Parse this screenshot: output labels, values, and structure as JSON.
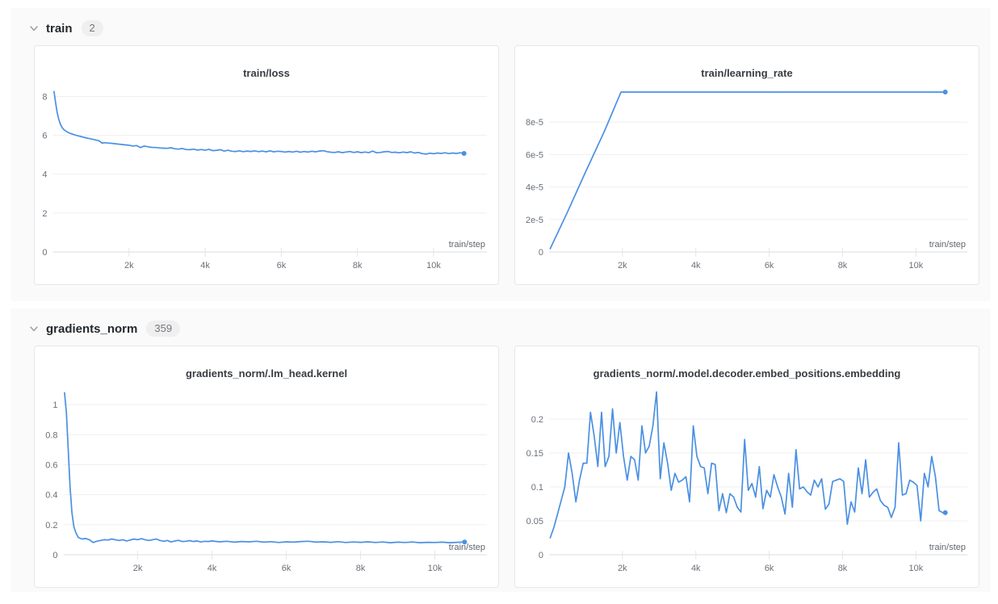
{
  "colors": {
    "accent": "#4a90e2",
    "grid": "#efefef",
    "axis": "#d9dce0",
    "tick_mark": "#e4e6e9",
    "section_bg": "#fafafa"
  },
  "sections": [
    {
      "label": "train",
      "count": "2"
    },
    {
      "label": "gradients_norm",
      "count": "359"
    }
  ],
  "chart_data": [
    {
      "type": "line",
      "title": "train/loss",
      "xlabel": "train/step",
      "xlim": [
        0,
        11400
      ],
      "ylim": [
        0,
        8.6
      ],
      "x_ticks": {
        "values": [
          2000,
          4000,
          6000,
          8000,
          10000
        ],
        "labels": [
          "2k",
          "4k",
          "6k",
          "8k",
          "10k"
        ]
      },
      "y_ticks": {
        "values": [
          0,
          2,
          4,
          6,
          8
        ],
        "labels": [
          "0",
          "2",
          "4",
          "6",
          "8"
        ]
      },
      "line_color": "#4a90e2",
      "points": [
        [
          30,
          8.25
        ],
        [
          70,
          7.7
        ],
        [
          110,
          7.2
        ],
        [
          150,
          6.85
        ],
        [
          190,
          6.6
        ],
        [
          230,
          6.45
        ],
        [
          270,
          6.33
        ],
        [
          310,
          6.26
        ],
        [
          370,
          6.18
        ],
        [
          430,
          6.12
        ],
        [
          500,
          6.07
        ],
        [
          570,
          6.03
        ],
        [
          650,
          5.98
        ],
        [
          730,
          5.94
        ],
        [
          810,
          5.9
        ],
        [
          890,
          5.86
        ],
        [
          970,
          5.83
        ],
        [
          1050,
          5.79
        ],
        [
          1130,
          5.76
        ],
        [
          1210,
          5.72
        ],
        [
          1290,
          5.6
        ],
        [
          1370,
          5.62
        ],
        [
          1450,
          5.6
        ],
        [
          1530,
          5.59
        ],
        [
          1610,
          5.57
        ],
        [
          1700,
          5.55
        ],
        [
          1800,
          5.53
        ],
        [
          1900,
          5.51
        ],
        [
          2000,
          5.49
        ],
        [
          2100,
          5.45
        ],
        [
          2200,
          5.47
        ],
        [
          2300,
          5.37
        ],
        [
          2400,
          5.45
        ],
        [
          2500,
          5.41
        ],
        [
          2600,
          5.38
        ],
        [
          2700,
          5.37
        ],
        [
          2800,
          5.35
        ],
        [
          2900,
          5.34
        ],
        [
          3000,
          5.33
        ],
        [
          3100,
          5.36
        ],
        [
          3200,
          5.31
        ],
        [
          3300,
          5.29
        ],
        [
          3400,
          5.32
        ],
        [
          3500,
          5.27
        ],
        [
          3600,
          5.26
        ],
        [
          3700,
          5.29
        ],
        [
          3800,
          5.24
        ],
        [
          3900,
          5.27
        ],
        [
          4000,
          5.23
        ],
        [
          4100,
          5.28
        ],
        [
          4200,
          5.21
        ],
        [
          4300,
          5.23
        ],
        [
          4400,
          5.26
        ],
        [
          4500,
          5.19
        ],
        [
          4600,
          5.23
        ],
        [
          4700,
          5.18
        ],
        [
          4800,
          5.17
        ],
        [
          4900,
          5.2
        ],
        [
          5000,
          5.16
        ],
        [
          5100,
          5.19
        ],
        [
          5200,
          5.17
        ],
        [
          5300,
          5.2
        ],
        [
          5400,
          5.16
        ],
        [
          5500,
          5.19
        ],
        [
          5600,
          5.15
        ],
        [
          5700,
          5.2
        ],
        [
          5800,
          5.15
        ],
        [
          5900,
          5.18
        ],
        [
          6000,
          5.17
        ],
        [
          6100,
          5.14
        ],
        [
          6200,
          5.17
        ],
        [
          6300,
          5.14
        ],
        [
          6400,
          5.18
        ],
        [
          6500,
          5.13
        ],
        [
          6600,
          5.17
        ],
        [
          6700,
          5.14
        ],
        [
          6800,
          5.18
        ],
        [
          6900,
          5.15
        ],
        [
          7000,
          5.19
        ],
        [
          7100,
          5.21
        ],
        [
          7200,
          5.16
        ],
        [
          7300,
          5.13
        ],
        [
          7400,
          5.12
        ],
        [
          7500,
          5.15
        ],
        [
          7600,
          5.11
        ],
        [
          7700,
          5.14
        ],
        [
          7800,
          5.17
        ],
        [
          7900,
          5.12
        ],
        [
          8000,
          5.15
        ],
        [
          8100,
          5.11
        ],
        [
          8200,
          5.14
        ],
        [
          8300,
          5.11
        ],
        [
          8400,
          5.19
        ],
        [
          8500,
          5.1
        ],
        [
          8600,
          5.12
        ],
        [
          8700,
          5.15
        ],
        [
          8800,
          5.17
        ],
        [
          8900,
          5.12
        ],
        [
          9000,
          5.13
        ],
        [
          9100,
          5.1
        ],
        [
          9200,
          5.14
        ],
        [
          9300,
          5.11
        ],
        [
          9400,
          5.15
        ],
        [
          9500,
          5.09
        ],
        [
          9600,
          5.12
        ],
        [
          9700,
          5.06
        ],
        [
          9800,
          5.03
        ],
        [
          9900,
          5.08
        ],
        [
          10000,
          5.05
        ],
        [
          10100,
          5.09
        ],
        [
          10200,
          5.07
        ],
        [
          10300,
          5.1
        ],
        [
          10400,
          5.06
        ],
        [
          10500,
          5.09
        ],
        [
          10600,
          5.07
        ],
        [
          10700,
          5.1
        ],
        [
          10800,
          5.07
        ]
      ]
    },
    {
      "type": "line",
      "title": "train/learning_rate",
      "xlabel": "train/step",
      "xlim": [
        0,
        11400
      ],
      "ylim": [
        0,
        0.000103
      ],
      "x_ticks": {
        "values": [
          2000,
          4000,
          6000,
          8000,
          10000
        ],
        "labels": [
          "2k",
          "4k",
          "6k",
          "8k",
          "10k"
        ]
      },
      "y_ticks": {
        "values": [
          0,
          2e-05,
          4e-05,
          6e-05,
          8e-05
        ],
        "labels": [
          "0",
          "2e-5",
          "4e-5",
          "6e-5",
          "8e-5"
        ]
      },
      "line_color": "#4a90e2",
      "points": [
        [
          30,
          2e-06
        ],
        [
          500,
          2.45e-05
        ],
        [
          1000,
          4.95e-05
        ],
        [
          1500,
          7.4e-05
        ],
        [
          1960,
          9.85e-05
        ],
        [
          3000,
          9.85e-05
        ],
        [
          5000,
          9.85e-05
        ],
        [
          7000,
          9.85e-05
        ],
        [
          9000,
          9.85e-05
        ],
        [
          10800,
          9.85e-05
        ]
      ]
    },
    {
      "type": "line",
      "title": "gradients_norm/.lm_head.kernel",
      "xlabel": "train/step",
      "xlim": [
        0,
        11400
      ],
      "ylim": [
        0,
        1.13
      ],
      "x_ticks": {
        "values": [
          2000,
          4000,
          6000,
          8000,
          10000
        ],
        "labels": [
          "2k",
          "4k",
          "6k",
          "8k",
          "10k"
        ]
      },
      "y_ticks": {
        "values": [
          0,
          0.2,
          0.4,
          0.6,
          0.8,
          1
        ],
        "labels": [
          "0",
          "0.2",
          "0.4",
          "0.6",
          "0.8",
          "1"
        ]
      },
      "line_color": "#4a90e2",
      "points": [
        [
          30,
          1.08
        ],
        [
          80,
          0.95
        ],
        [
          130,
          0.7
        ],
        [
          180,
          0.45
        ],
        [
          230,
          0.28
        ],
        [
          280,
          0.19
        ],
        [
          330,
          0.15
        ],
        [
          400,
          0.115
        ],
        [
          500,
          0.105
        ],
        [
          600,
          0.108
        ],
        [
          700,
          0.1
        ],
        [
          800,
          0.082
        ],
        [
          900,
          0.09
        ],
        [
          1000,
          0.095
        ],
        [
          1100,
          0.1
        ],
        [
          1200,
          0.098
        ],
        [
          1300,
          0.105
        ],
        [
          1400,
          0.1
        ],
        [
          1500,
          0.095
        ],
        [
          1600,
          0.1
        ],
        [
          1700,
          0.092
        ],
        [
          1800,
          0.098
        ],
        [
          1900,
          0.105
        ],
        [
          2000,
          0.1
        ],
        [
          2100,
          0.107
        ],
        [
          2200,
          0.1
        ],
        [
          2300,
          0.095
        ],
        [
          2400,
          0.1
        ],
        [
          2500,
          0.105
        ],
        [
          2600,
          0.095
        ],
        [
          2700,
          0.09
        ],
        [
          2800,
          0.095
        ],
        [
          2900,
          0.085
        ],
        [
          3000,
          0.092
        ],
        [
          3100,
          0.096
        ],
        [
          3200,
          0.088
        ],
        [
          3300,
          0.09
        ],
        [
          3400,
          0.094
        ],
        [
          3500,
          0.088
        ],
        [
          3600,
          0.092
        ],
        [
          3700,
          0.085
        ],
        [
          3800,
          0.09
        ],
        [
          3900,
          0.088
        ],
        [
          4000,
          0.092
        ],
        [
          4200,
          0.086
        ],
        [
          4400,
          0.09
        ],
        [
          4600,
          0.084
        ],
        [
          4800,
          0.088
        ],
        [
          5000,
          0.086
        ],
        [
          5200,
          0.09
        ],
        [
          5400,
          0.084
        ],
        [
          5600,
          0.087
        ],
        [
          5800,
          0.082
        ],
        [
          6000,
          0.086
        ],
        [
          6200,
          0.084
        ],
        [
          6400,
          0.088
        ],
        [
          6600,
          0.09
        ],
        [
          6800,
          0.084
        ],
        [
          7000,
          0.086
        ],
        [
          7200,
          0.083
        ],
        [
          7400,
          0.087
        ],
        [
          7600,
          0.082
        ],
        [
          7800,
          0.085
        ],
        [
          8000,
          0.083
        ],
        [
          8200,
          0.086
        ],
        [
          8400,
          0.082
        ],
        [
          8600,
          0.085
        ],
        [
          8800,
          0.08
        ],
        [
          9000,
          0.084
        ],
        [
          9200,
          0.082
        ],
        [
          9400,
          0.085
        ],
        [
          9600,
          0.08
        ],
        [
          9800,
          0.083
        ],
        [
          10000,
          0.082
        ],
        [
          10200,
          0.084
        ],
        [
          10400,
          0.08
        ],
        [
          10600,
          0.083
        ],
        [
          10800,
          0.085
        ]
      ]
    },
    {
      "type": "line",
      "title": "gradients_norm/.model.decoder.embed_positions.embedding",
      "xlabel": "train/step",
      "xlim": [
        0,
        11400
      ],
      "ylim": [
        0,
        0.25
      ],
      "x_ticks": {
        "values": [
          2000,
          4000,
          6000,
          8000,
          10000
        ],
        "labels": [
          "2k",
          "4k",
          "6k",
          "8k",
          "10k"
        ]
      },
      "y_ticks": {
        "values": [
          0,
          0.05,
          0.1,
          0.15,
          0.2
        ],
        "labels": [
          "0",
          "0.05",
          "0.1",
          "0.15",
          "0.2"
        ]
      },
      "line_color": "#4a90e2",
      "points": [
        [
          30,
          0.025
        ],
        [
          130,
          0.04
        ],
        [
          230,
          0.06
        ],
        [
          330,
          0.08
        ],
        [
          430,
          0.1
        ],
        [
          530,
          0.15
        ],
        [
          630,
          0.12
        ],
        [
          730,
          0.078
        ],
        [
          830,
          0.11
        ],
        [
          930,
          0.135
        ],
        [
          1030,
          0.135
        ],
        [
          1130,
          0.21
        ],
        [
          1230,
          0.175
        ],
        [
          1330,
          0.13
        ],
        [
          1430,
          0.21
        ],
        [
          1530,
          0.13
        ],
        [
          1630,
          0.145
        ],
        [
          1730,
          0.215
        ],
        [
          1830,
          0.15
        ],
        [
          1930,
          0.195
        ],
        [
          2030,
          0.145
        ],
        [
          2130,
          0.11
        ],
        [
          2230,
          0.145
        ],
        [
          2330,
          0.14
        ],
        [
          2430,
          0.11
        ],
        [
          2530,
          0.19
        ],
        [
          2630,
          0.15
        ],
        [
          2730,
          0.16
        ],
        [
          2830,
          0.19
        ],
        [
          2930,
          0.24
        ],
        [
          3030,
          0.112
        ],
        [
          3130,
          0.165
        ],
        [
          3230,
          0.135
        ],
        [
          3330,
          0.095
        ],
        [
          3430,
          0.12
        ],
        [
          3530,
          0.107
        ],
        [
          3630,
          0.11
        ],
        [
          3730,
          0.115
        ],
        [
          3830,
          0.078
        ],
        [
          3930,
          0.19
        ],
        [
          4030,
          0.145
        ],
        [
          4130,
          0.13
        ],
        [
          4230,
          0.128
        ],
        [
          4330,
          0.09
        ],
        [
          4430,
          0.135
        ],
        [
          4530,
          0.133
        ],
        [
          4630,
          0.065
        ],
        [
          4730,
          0.09
        ],
        [
          4830,
          0.062
        ],
        [
          4930,
          0.09
        ],
        [
          5030,
          0.085
        ],
        [
          5130,
          0.07
        ],
        [
          5230,
          0.063
        ],
        [
          5330,
          0.17
        ],
        [
          5430,
          0.095
        ],
        [
          5530,
          0.105
        ],
        [
          5630,
          0.085
        ],
        [
          5730,
          0.13
        ],
        [
          5830,
          0.068
        ],
        [
          5930,
          0.095
        ],
        [
          6030,
          0.085
        ],
        [
          6130,
          0.118
        ],
        [
          6230,
          0.1
        ],
        [
          6330,
          0.085
        ],
        [
          6430,
          0.06
        ],
        [
          6530,
          0.12
        ],
        [
          6630,
          0.07
        ],
        [
          6730,
          0.155
        ],
        [
          6830,
          0.097
        ],
        [
          6930,
          0.1
        ],
        [
          7030,
          0.093
        ],
        [
          7130,
          0.088
        ],
        [
          7230,
          0.11
        ],
        [
          7330,
          0.1
        ],
        [
          7430,
          0.112
        ],
        [
          7530,
          0.067
        ],
        [
          7630,
          0.075
        ],
        [
          7730,
          0.108
        ],
        [
          7830,
          0.11
        ],
        [
          7930,
          0.112
        ],
        [
          8030,
          0.108
        ],
        [
          8130,
          0.045
        ],
        [
          8230,
          0.078
        ],
        [
          8330,
          0.063
        ],
        [
          8430,
          0.128
        ],
        [
          8530,
          0.09
        ],
        [
          8630,
          0.14
        ],
        [
          8730,
          0.085
        ],
        [
          8830,
          0.092
        ],
        [
          8930,
          0.097
        ],
        [
          9030,
          0.08
        ],
        [
          9130,
          0.073
        ],
        [
          9230,
          0.07
        ],
        [
          9330,
          0.055
        ],
        [
          9430,
          0.07
        ],
        [
          9530,
          0.165
        ],
        [
          9630,
          0.088
        ],
        [
          9730,
          0.09
        ],
        [
          9830,
          0.11
        ],
        [
          9930,
          0.107
        ],
        [
          10030,
          0.102
        ],
        [
          10130,
          0.05
        ],
        [
          10230,
          0.12
        ],
        [
          10330,
          0.1
        ],
        [
          10430,
          0.145
        ],
        [
          10530,
          0.115
        ],
        [
          10630,
          0.065
        ],
        [
          10730,
          0.062
        ],
        [
          10800,
          0.062
        ]
      ]
    }
  ]
}
